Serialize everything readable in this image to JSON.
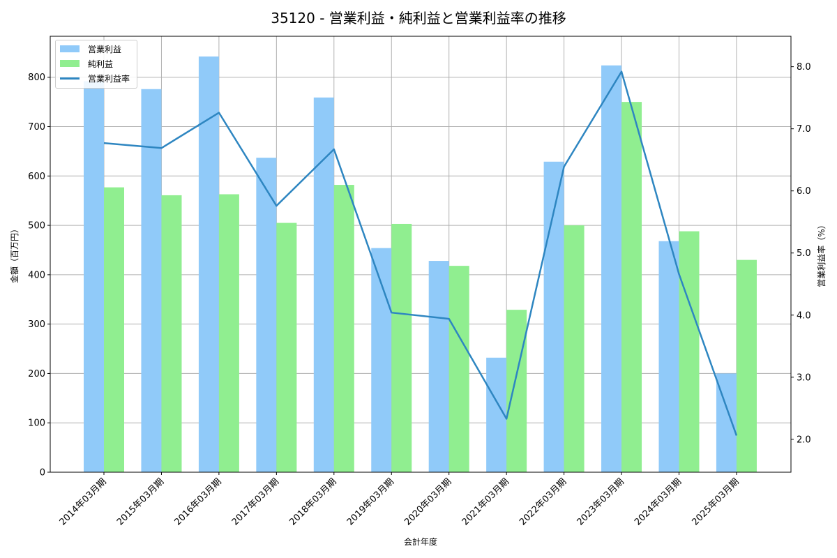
{
  "chart_data": {
    "type": "bar",
    "title": "35120 - 営業利益・純利益と営業利益率の推移",
    "xlabel": "会計年度",
    "ylabel": "金額（百万円）",
    "y2label": "営業利益率（%）",
    "categories": [
      "2014年03月期",
      "2015年03月期",
      "2016年03月期",
      "2017年03月期",
      "2018年03月期",
      "2019年03月期",
      "2020年03月期",
      "2021年03月期",
      "2022年03月期",
      "2023年03月期",
      "2024年03月期",
      "2025年03月期"
    ],
    "series": [
      {
        "name": "営業利益",
        "type": "bar",
        "axis": "left",
        "color": "#90caf9",
        "values": [
          792,
          776,
          842,
          637,
          759,
          454,
          428,
          232,
          629,
          824,
          468,
          200
        ]
      },
      {
        "name": "純利益",
        "type": "bar",
        "axis": "left",
        "color": "#90ee90",
        "values": [
          577,
          561,
          563,
          505,
          582,
          503,
          418,
          329,
          500,
          750,
          488,
          430
        ]
      },
      {
        "name": "営業利益率",
        "type": "line",
        "axis": "right",
        "color": "#2e86c1",
        "values": [
          6.77,
          6.69,
          7.26,
          5.76,
          6.67,
          4.04,
          3.94,
          2.33,
          6.39,
          7.92,
          4.66,
          2.06
        ]
      }
    ],
    "ylim": [
      0,
      883
    ],
    "y2lim": [
      1.47,
      8.49
    ],
    "yticks": [
      "0",
      "100",
      "200",
      "300",
      "400",
      "500",
      "600",
      "700",
      "800"
    ],
    "y2ticks": [
      "2.0",
      "3.0",
      "4.0",
      "5.0",
      "6.0",
      "7.0",
      "8.0"
    ],
    "grid": true,
    "legend_position": "upper left"
  },
  "legend": {
    "op_label": "営業利益",
    "net_label": "純利益",
    "rate_label": "営業利益率"
  }
}
